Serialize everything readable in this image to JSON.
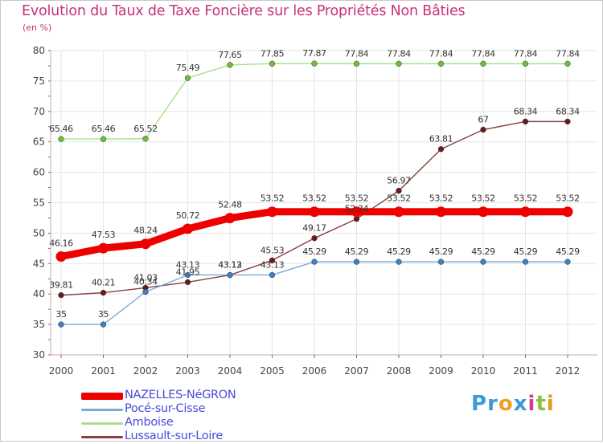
{
  "title": "Evolution du Taux de Taxe Foncière sur les Propriétés Non Bâties",
  "unit": "(en %)",
  "logo": {
    "text": [
      "P",
      "r",
      "o",
      "x",
      "i",
      "t",
      "i"
    ],
    "colors": [
      "#3a9ad9",
      "#3a9ad9",
      "#f0a020",
      "#3a9ad9",
      "#d93a8a",
      "#8ac23a",
      "#d9a020"
    ]
  },
  "chart_data": {
    "type": "line",
    "title": "Evolution du Taux de Taxe Foncière sur les Propriétés Non Bâties",
    "ylabel": "(en %)",
    "xlabel": "",
    "ylim": [
      30,
      80
    ],
    "yticks": [
      30,
      35,
      40,
      45,
      50,
      55,
      60,
      65,
      70,
      75,
      80
    ],
    "categories": [
      "2000",
      "2001",
      "2002",
      "2003",
      "2004",
      "2005",
      "2006",
      "2007",
      "2008",
      "2009",
      "2010",
      "2011",
      "2012"
    ],
    "series": [
      {
        "name": "NAZELLES-NéGRON",
        "color": "#ee0000",
        "point_color": "#ee0000",
        "weight": "thick",
        "values": [
          46.16,
          47.53,
          48.24,
          50.72,
          52.48,
          53.52,
          53.52,
          53.52,
          53.52,
          53.52,
          53.52,
          53.52,
          53.52
        ],
        "labels": [
          "46.16",
          "47.53",
          "48.24",
          "50.72",
          "52.48",
          "53.52",
          "53.52",
          "53.52",
          "53.52",
          "53.52",
          "53.52",
          "53.52",
          "53.52"
        ]
      },
      {
        "name": "Pocé-sur-Cisse",
        "color": "#7aaad8",
        "point_color": "#3a82c8",
        "weight": "thin",
        "values": [
          35,
          35,
          40.34,
          43.13,
          43.13,
          43.13,
          45.29,
          45.29,
          45.29,
          45.29,
          45.29,
          45.29,
          45.29
        ],
        "labels": [
          "35",
          "35",
          "40.34",
          "43.13",
          "43.13",
          "43.13",
          "45.29",
          "45.29",
          "45.29",
          "45.29",
          "45.29",
          "45.29",
          "45.29"
        ]
      },
      {
        "name": "Amboise",
        "color": "#a8e08a",
        "point_color": "#6cc038",
        "weight": "thin",
        "values": [
          65.46,
          65.46,
          65.52,
          75.49,
          77.65,
          77.85,
          77.87,
          77.84,
          77.84,
          77.84,
          77.84,
          77.84,
          77.84
        ],
        "labels": [
          "65.46",
          "65.46",
          "65.52",
          "75.49",
          "77.65",
          "77.85",
          "77.87",
          "77.84",
          "77.84",
          "77.84",
          "77.84",
          "77.84",
          "77.84"
        ]
      },
      {
        "name": "Lussault-sur-Loire",
        "color": "#8a4040",
        "point_color": "#6a1a1a",
        "weight": "thin",
        "values": [
          39.81,
          40.21,
          41.03,
          41.95,
          43.12,
          45.53,
          49.17,
          52.34,
          56.97,
          63.81,
          67,
          68.34,
          68.34
        ],
        "labels": [
          "39.81",
          "40.21",
          "41.03",
          "41.95",
          "43.12",
          "45.53",
          "49.17",
          "52.34",
          "56.97",
          "63.81",
          "67",
          "68.34",
          "68.34"
        ]
      }
    ],
    "legend_position": "bottom-left",
    "grid": true
  }
}
